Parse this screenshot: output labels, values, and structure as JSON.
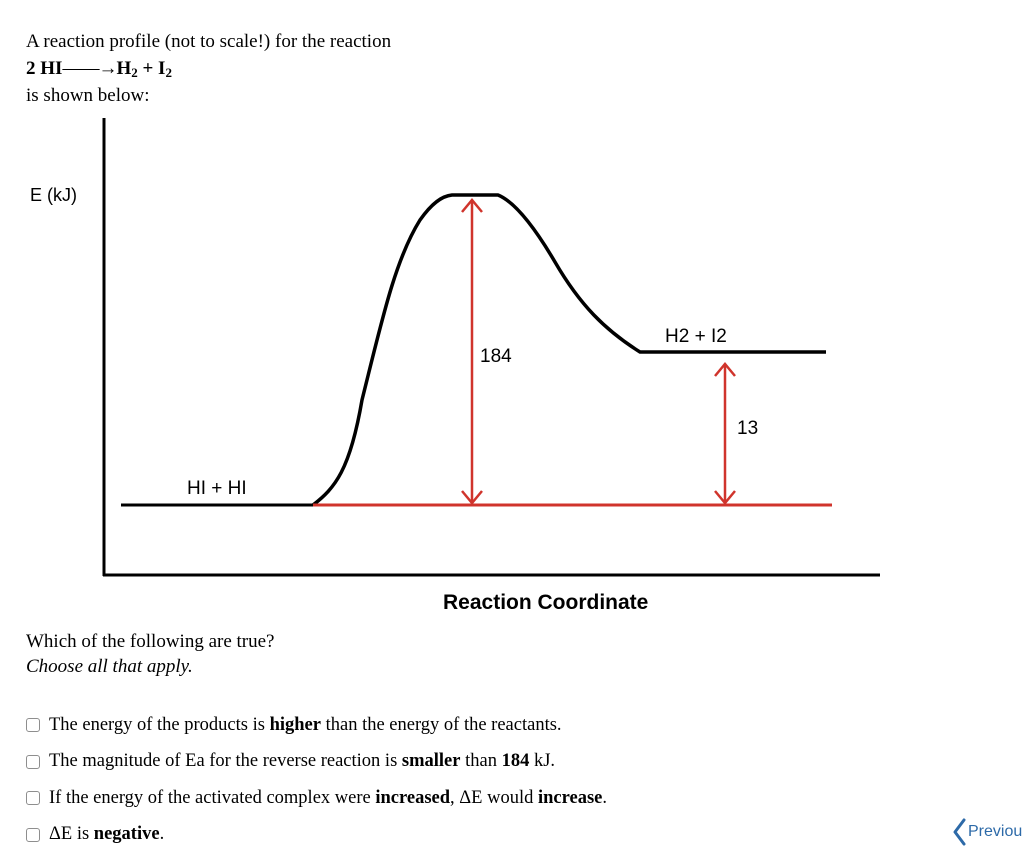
{
  "intro": {
    "line1": "A reaction profile (not to scale!) for the reaction",
    "reaction": {
      "reactant": "2 HI",
      "arrow": "——→",
      "h": "H",
      "h_sub": "2",
      "plus": " + ",
      "i": "I",
      "i_sub": "2"
    },
    "line3": "is shown below:"
  },
  "diagram": {
    "y_axis_label": "E (kJ)",
    "x_axis_label": "Reaction Coordinate",
    "reactants_label": "HI + HI",
    "products_label": "H2 + I2",
    "activation_label": "184",
    "delta_label": "13",
    "colors": {
      "curve": "#000000",
      "arrows": "#d0342c"
    }
  },
  "question": {
    "prompt": "Which of the following are true?",
    "hint": "Choose all that apply."
  },
  "options": [
    {
      "pre": "The energy of the products is ",
      "bold": "higher",
      "post": " than the energy of the reactants.",
      "checked": false
    },
    {
      "pre": "The magnitude of Ea for the reverse reaction is ",
      "bold": "smaller",
      "mid": " than ",
      "bold2": "184",
      "post": " kJ.",
      "checked": false
    },
    {
      "pre": "If the energy of the activated complex were ",
      "bold": "increased",
      "mid": ", ΔE would ",
      "bold2": "increase",
      "post": ".",
      "checked": false
    },
    {
      "pre": "ΔE is ",
      "bold": "negative",
      "post": ".",
      "checked": false
    }
  ],
  "nav": {
    "previous_label": "Previou"
  }
}
